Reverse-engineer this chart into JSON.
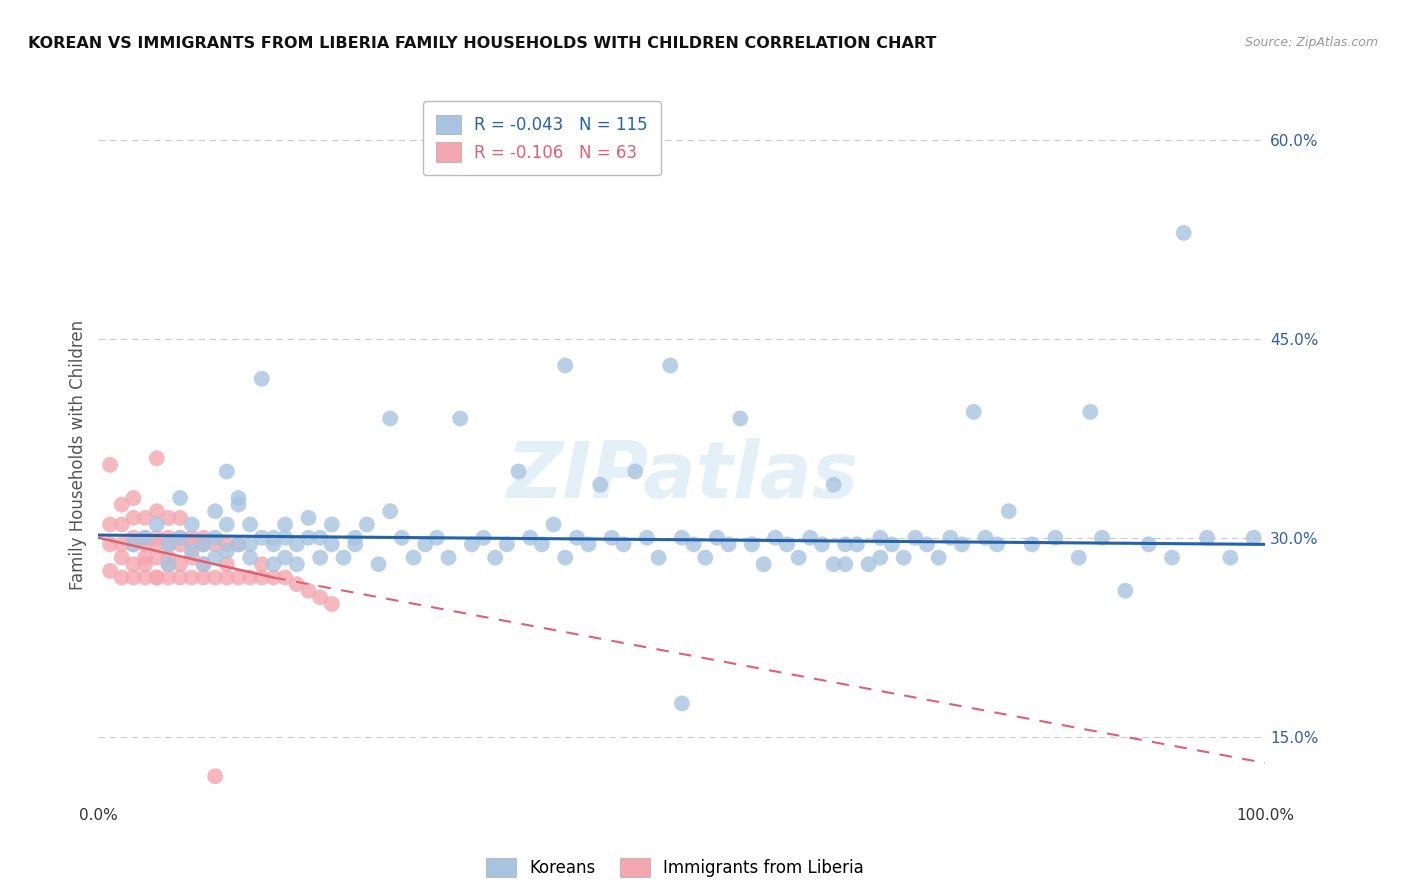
{
  "title": "KOREAN VS IMMIGRANTS FROM LIBERIA FAMILY HOUSEHOLDS WITH CHILDREN CORRELATION CHART",
  "source": "Source: ZipAtlas.com",
  "ylabel": "Family Households with Children",
  "legend_labels": [
    "Koreans",
    "Immigrants from Liberia"
  ],
  "korean_R": -0.043,
  "korean_N": 115,
  "liberia_R": -0.106,
  "liberia_N": 63,
  "xlim": [
    0.0,
    1.0
  ],
  "ylim": [
    0.1,
    0.625
  ],
  "yticks": [
    0.15,
    0.3,
    0.45,
    0.6
  ],
  "ytick_labels": [
    "15.0%",
    "30.0%",
    "45.0%",
    "60.0%"
  ],
  "xticks": [
    0.0,
    0.25,
    0.5,
    0.75,
    1.0
  ],
  "xtick_labels": [
    "0.0%",
    "",
    "",
    "",
    "100.0%"
  ],
  "korean_color": "#a8c4e0",
  "liberia_color": "#f4a7b0",
  "korean_line_color": "#2563a8",
  "liberia_line_color": "#e06070",
  "watermark": "ZIPatlas",
  "background_color": "#ffffff",
  "grid_color": "#cccccc",
  "korean_scatter": [
    [
      0.03,
      0.295
    ],
    [
      0.04,
      0.3
    ],
    [
      0.05,
      0.31
    ],
    [
      0.06,
      0.295
    ],
    [
      0.06,
      0.28
    ],
    [
      0.07,
      0.3
    ],
    [
      0.07,
      0.33
    ],
    [
      0.08,
      0.29
    ],
    [
      0.08,
      0.31
    ],
    [
      0.09,
      0.295
    ],
    [
      0.09,
      0.28
    ],
    [
      0.1,
      0.3
    ],
    [
      0.1,
      0.32
    ],
    [
      0.1,
      0.285
    ],
    [
      0.11,
      0.35
    ],
    [
      0.11,
      0.31
    ],
    [
      0.11,
      0.29
    ],
    [
      0.12,
      0.33
    ],
    [
      0.12,
      0.325
    ],
    [
      0.12,
      0.295
    ],
    [
      0.13,
      0.285
    ],
    [
      0.13,
      0.31
    ],
    [
      0.13,
      0.295
    ],
    [
      0.14,
      0.3
    ],
    [
      0.14,
      0.42
    ],
    [
      0.15,
      0.3
    ],
    [
      0.15,
      0.295
    ],
    [
      0.15,
      0.28
    ],
    [
      0.16,
      0.3
    ],
    [
      0.16,
      0.31
    ],
    [
      0.16,
      0.285
    ],
    [
      0.17,
      0.295
    ],
    [
      0.17,
      0.28
    ],
    [
      0.18,
      0.3
    ],
    [
      0.18,
      0.315
    ],
    [
      0.19,
      0.285
    ],
    [
      0.19,
      0.3
    ],
    [
      0.2,
      0.295
    ],
    [
      0.2,
      0.31
    ],
    [
      0.21,
      0.285
    ],
    [
      0.22,
      0.3
    ],
    [
      0.22,
      0.295
    ],
    [
      0.23,
      0.31
    ],
    [
      0.24,
      0.28
    ],
    [
      0.25,
      0.32
    ],
    [
      0.25,
      0.39
    ],
    [
      0.26,
      0.3
    ],
    [
      0.27,
      0.285
    ],
    [
      0.28,
      0.295
    ],
    [
      0.29,
      0.3
    ],
    [
      0.3,
      0.285
    ],
    [
      0.31,
      0.39
    ],
    [
      0.32,
      0.295
    ],
    [
      0.33,
      0.3
    ],
    [
      0.34,
      0.285
    ],
    [
      0.35,
      0.295
    ],
    [
      0.36,
      0.35
    ],
    [
      0.37,
      0.3
    ],
    [
      0.38,
      0.295
    ],
    [
      0.39,
      0.31
    ],
    [
      0.4,
      0.43
    ],
    [
      0.4,
      0.285
    ],
    [
      0.41,
      0.3
    ],
    [
      0.42,
      0.295
    ],
    [
      0.43,
      0.34
    ],
    [
      0.44,
      0.3
    ],
    [
      0.45,
      0.295
    ],
    [
      0.46,
      0.35
    ],
    [
      0.47,
      0.3
    ],
    [
      0.48,
      0.285
    ],
    [
      0.49,
      0.43
    ],
    [
      0.5,
      0.3
    ],
    [
      0.5,
      0.175
    ],
    [
      0.51,
      0.295
    ],
    [
      0.52,
      0.285
    ],
    [
      0.53,
      0.3
    ],
    [
      0.54,
      0.295
    ],
    [
      0.55,
      0.39
    ],
    [
      0.56,
      0.295
    ],
    [
      0.57,
      0.28
    ],
    [
      0.58,
      0.3
    ],
    [
      0.59,
      0.295
    ],
    [
      0.6,
      0.285
    ],
    [
      0.61,
      0.3
    ],
    [
      0.62,
      0.295
    ],
    [
      0.63,
      0.34
    ],
    [
      0.63,
      0.28
    ],
    [
      0.64,
      0.295
    ],
    [
      0.64,
      0.28
    ],
    [
      0.65,
      0.295
    ],
    [
      0.66,
      0.28
    ],
    [
      0.67,
      0.3
    ],
    [
      0.67,
      0.285
    ],
    [
      0.68,
      0.295
    ],
    [
      0.69,
      0.285
    ],
    [
      0.7,
      0.3
    ],
    [
      0.71,
      0.295
    ],
    [
      0.72,
      0.285
    ],
    [
      0.73,
      0.3
    ],
    [
      0.74,
      0.295
    ],
    [
      0.75,
      0.395
    ],
    [
      0.76,
      0.3
    ],
    [
      0.77,
      0.295
    ],
    [
      0.78,
      0.32
    ],
    [
      0.8,
      0.295
    ],
    [
      0.82,
      0.3
    ],
    [
      0.84,
      0.285
    ],
    [
      0.85,
      0.395
    ],
    [
      0.86,
      0.3
    ],
    [
      0.88,
      0.26
    ],
    [
      0.9,
      0.295
    ],
    [
      0.92,
      0.285
    ],
    [
      0.93,
      0.53
    ],
    [
      0.95,
      0.3
    ],
    [
      0.97,
      0.285
    ],
    [
      0.99,
      0.3
    ]
  ],
  "liberia_scatter": [
    [
      0.01,
      0.355
    ],
    [
      0.01,
      0.295
    ],
    [
      0.01,
      0.31
    ],
    [
      0.01,
      0.275
    ],
    [
      0.02,
      0.285
    ],
    [
      0.02,
      0.325
    ],
    [
      0.02,
      0.295
    ],
    [
      0.02,
      0.31
    ],
    [
      0.02,
      0.27
    ],
    [
      0.03,
      0.33
    ],
    [
      0.03,
      0.295
    ],
    [
      0.03,
      0.28
    ],
    [
      0.03,
      0.3
    ],
    [
      0.03,
      0.315
    ],
    [
      0.03,
      0.27
    ],
    [
      0.04,
      0.295
    ],
    [
      0.04,
      0.28
    ],
    [
      0.04,
      0.3
    ],
    [
      0.04,
      0.315
    ],
    [
      0.04,
      0.27
    ],
    [
      0.04,
      0.285
    ],
    [
      0.05,
      0.295
    ],
    [
      0.05,
      0.3
    ],
    [
      0.05,
      0.27
    ],
    [
      0.05,
      0.32
    ],
    [
      0.05,
      0.285
    ],
    [
      0.05,
      0.27
    ],
    [
      0.05,
      0.36
    ],
    [
      0.06,
      0.295
    ],
    [
      0.06,
      0.3
    ],
    [
      0.06,
      0.28
    ],
    [
      0.06,
      0.27
    ],
    [
      0.06,
      0.315
    ],
    [
      0.06,
      0.285
    ],
    [
      0.07,
      0.295
    ],
    [
      0.07,
      0.28
    ],
    [
      0.07,
      0.3
    ],
    [
      0.07,
      0.27
    ],
    [
      0.07,
      0.315
    ],
    [
      0.08,
      0.295
    ],
    [
      0.08,
      0.3
    ],
    [
      0.08,
      0.27
    ],
    [
      0.08,
      0.285
    ],
    [
      0.09,
      0.295
    ],
    [
      0.09,
      0.28
    ],
    [
      0.09,
      0.27
    ],
    [
      0.09,
      0.3
    ],
    [
      0.1,
      0.27
    ],
    [
      0.1,
      0.295
    ],
    [
      0.1,
      0.12
    ],
    [
      0.11,
      0.27
    ],
    [
      0.11,
      0.295
    ],
    [
      0.11,
      0.28
    ],
    [
      0.12,
      0.27
    ],
    [
      0.12,
      0.295
    ],
    [
      0.13,
      0.27
    ],
    [
      0.14,
      0.27
    ],
    [
      0.14,
      0.28
    ],
    [
      0.15,
      0.27
    ],
    [
      0.16,
      0.27
    ],
    [
      0.17,
      0.265
    ],
    [
      0.18,
      0.26
    ],
    [
      0.19,
      0.255
    ],
    [
      0.2,
      0.25
    ]
  ],
  "korean_line": [
    [
      0.0,
      0.302
    ],
    [
      1.0,
      0.295
    ]
  ],
  "liberia_line_solid": [
    [
      0.0,
      0.3
    ],
    [
      0.15,
      0.27
    ]
  ],
  "liberia_line_dashed": [
    [
      0.15,
      0.27
    ],
    [
      1.0,
      0.13
    ]
  ]
}
